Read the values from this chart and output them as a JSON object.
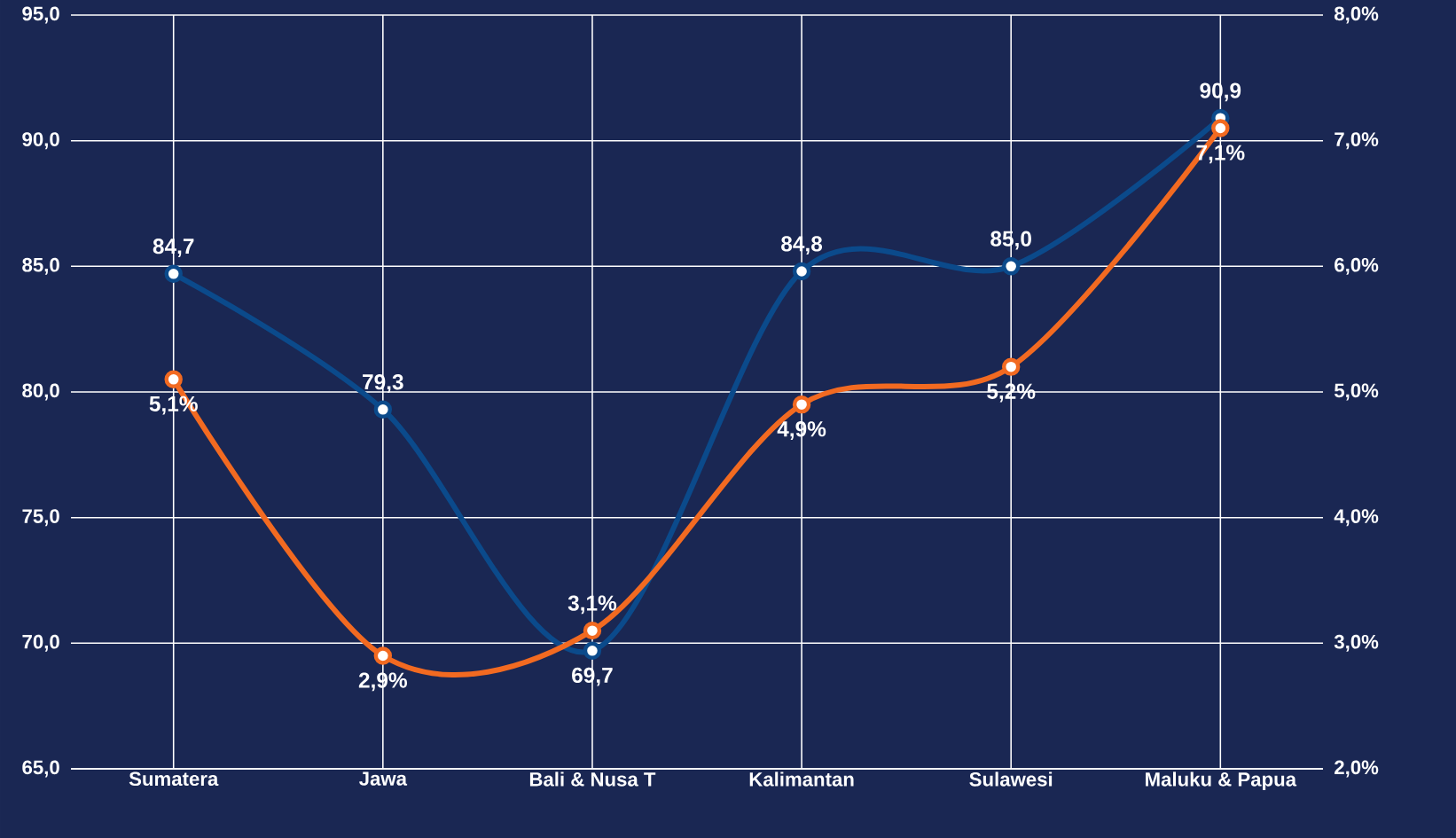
{
  "chart_data": {
    "type": "line",
    "categories": [
      "Sumatera",
      "Jawa",
      "Bali & Nusa T",
      "Kalimantan",
      "Sulawesi",
      "Maluku & Papua"
    ],
    "series": [
      {
        "color": "#0b4a8b",
        "values": [
          84.7,
          79.3,
          69.7,
          84.8,
          85.0,
          90.9
        ],
        "value_labels": [
          "84,7",
          "79,3",
          "69,7",
          "84,8",
          "85,0",
          "90,9"
        ]
      },
      {
        "color": "#f26a21",
        "axis": "y2",
        "values": [
          5.1,
          2.9,
          3.1,
          4.9,
          5.2,
          7.1
        ],
        "value_labels": [
          "5,1%",
          "2,9%",
          "3,1%",
          "4,9%",
          "5,2%",
          "7,1%"
        ]
      }
    ],
    "ylim": [
      65,
      95
    ],
    "yticks": [
      {
        "value": 65,
        "label": "65,0"
      },
      {
        "value": 70,
        "label": "70,0"
      },
      {
        "value": 75,
        "label": "75,0"
      },
      {
        "value": 80,
        "label": "80,0"
      },
      {
        "value": 85,
        "label": "85,0"
      },
      {
        "value": 90,
        "label": "90,0"
      },
      {
        "value": 95,
        "label": "95,0"
      }
    ],
    "y2lim": [
      2,
      8
    ],
    "y2ticks": [
      {
        "value": 2,
        "label": "2,0%"
      },
      {
        "value": 3,
        "label": "3,0%"
      },
      {
        "value": 4,
        "label": "4,0%"
      },
      {
        "value": 5,
        "label": "5,0%"
      },
      {
        "value": 6,
        "label": "6,0%"
      },
      {
        "value": 7,
        "label": "7,0%"
      },
      {
        "value": 8,
        "label": "8,0%"
      }
    ],
    "grid": true,
    "marker": "circle",
    "line_style": "solid"
  }
}
